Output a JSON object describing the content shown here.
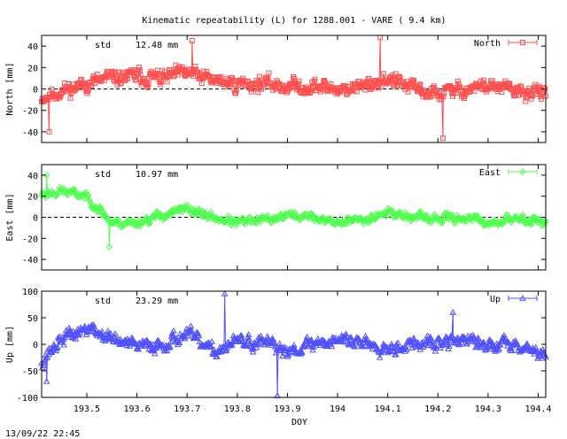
{
  "title": "Kinematic repeatability (L) for 1288.001 - VARE  (  9.4 km)",
  "footer": "13/09/22 22:45",
  "xlabel": "DOY",
  "colors": {
    "north": "#ff5050",
    "east": "#50ff50",
    "up": "#5050ff",
    "axis": "#000000"
  },
  "chart_data": [
    {
      "type": "line",
      "panel": "north",
      "ylabel": "North [mm]",
      "legend": "North",
      "legend_placement": "top-right",
      "marker": "open-square",
      "std_label": "std",
      "std_value": "12.48 mm",
      "ylim": [
        -50,
        50
      ],
      "yticks": [
        -40,
        -20,
        0,
        20,
        40
      ],
      "xlim": [
        193.41,
        194.415
      ],
      "x_start": 193.41,
      "x_end": 194.415,
      "zero_line": true,
      "profile_x": [
        193.41,
        193.45,
        193.5,
        193.55,
        193.6,
        193.65,
        193.7,
        193.75,
        193.8,
        193.85,
        193.9,
        193.95,
        194.0,
        194.05,
        194.1,
        194.15,
        194.2,
        194.25,
        194.3,
        194.35,
        194.415
      ],
      "profile_mean": [
        -8,
        -2,
        5,
        10,
        12,
        10,
        15,
        8,
        5,
        5,
        3,
        2,
        0,
        2,
        10,
        0,
        -5,
        0,
        3,
        -2,
        -5
      ],
      "noise_std": 12.48,
      "outliers": [
        {
          "x": 193.71,
          "y": 45
        },
        {
          "x": 194.085,
          "y": 48
        },
        {
          "x": 194.21,
          "y": -46
        },
        {
          "x": 193.425,
          "y": -40
        }
      ]
    },
    {
      "type": "line",
      "panel": "east",
      "ylabel": "East [mm]",
      "legend": "East",
      "legend_placement": "top-right",
      "marker": "open-diamond",
      "std_label": "std",
      "std_value": "10.97 mm",
      "ylim": [
        -50,
        50
      ],
      "yticks": [
        -40,
        -20,
        0,
        20,
        40
      ],
      "xlim": [
        193.41,
        194.415
      ],
      "x_start": 193.41,
      "x_end": 194.415,
      "zero_line": true,
      "profile_x": [
        193.41,
        193.45,
        193.5,
        193.55,
        193.6,
        193.65,
        193.7,
        193.75,
        193.8,
        193.85,
        193.9,
        193.95,
        194.0,
        194.05,
        194.1,
        194.15,
        194.2,
        194.25,
        194.3,
        194.35,
        194.415
      ],
      "profile_mean": [
        22,
        25,
        20,
        -5,
        -5,
        2,
        8,
        0,
        -5,
        -3,
        2,
        0,
        -5,
        -2,
        5,
        0,
        -2,
        0,
        -5,
        -2,
        -3
      ],
      "noise_std": 7,
      "outliers": [
        {
          "x": 193.42,
          "y": 40
        },
        {
          "x": 193.545,
          "y": -28
        }
      ]
    },
    {
      "type": "line",
      "panel": "up",
      "ylabel": "Up [mm]",
      "legend": "Up",
      "legend_placement": "top-right",
      "marker": "open-triangle",
      "std_label": "std",
      "std_value": "23.29 mm",
      "ylim": [
        -100,
        100
      ],
      "yticks": [
        -100,
        -50,
        0,
        50,
        100
      ],
      "xlim": [
        193.41,
        194.415
      ],
      "x_start": 193.41,
      "x_end": 194.415,
      "zero_line": false,
      "profile_x": [
        193.41,
        193.45,
        193.5,
        193.55,
        193.6,
        193.65,
        193.7,
        193.75,
        193.8,
        193.85,
        193.9,
        193.95,
        194.0,
        194.05,
        194.1,
        194.15,
        194.2,
        194.25,
        194.3,
        194.35,
        194.415
      ],
      "profile_mean": [
        -30,
        10,
        30,
        10,
        -5,
        0,
        20,
        -15,
        5,
        0,
        -10,
        0,
        10,
        5,
        -5,
        0,
        0,
        10,
        -5,
        5,
        -20
      ],
      "noise_std": 23.29,
      "outliers": [
        {
          "x": 193.775,
          "y": 95
        },
        {
          "x": 193.88,
          "y": -97
        },
        {
          "x": 193.42,
          "y": -70
        },
        {
          "x": 194.23,
          "y": 60
        }
      ]
    }
  ],
  "x_axis": {
    "ticks": [
      193.5,
      193.6,
      193.7,
      193.8,
      193.9,
      194.0,
      194.1,
      194.2,
      194.3,
      194.4
    ],
    "tick_labels": [
      "193.5",
      "193.6",
      "193.7",
      "193.8",
      "193.9",
      "194",
      "194.1",
      "194.2",
      "194.3",
      "194.4"
    ]
  }
}
